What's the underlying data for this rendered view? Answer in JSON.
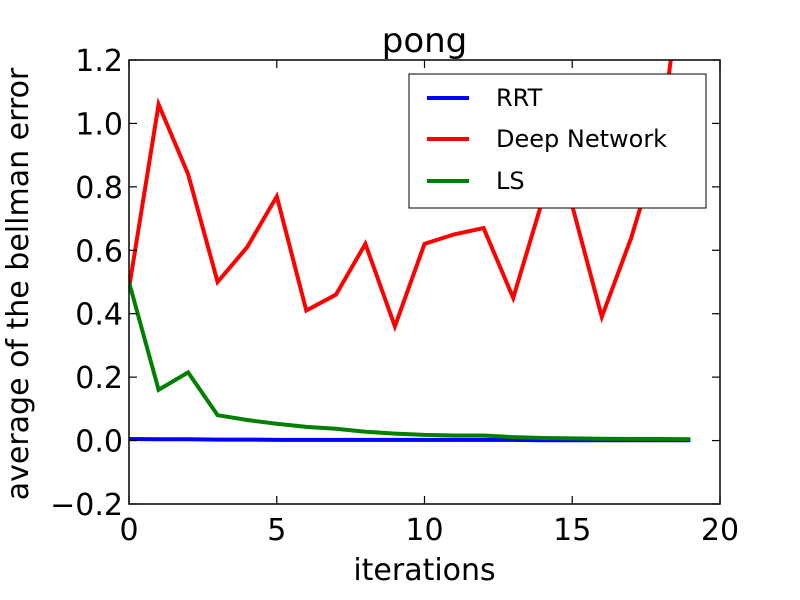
{
  "chart_data": {
    "type": "line",
    "title": "pong",
    "xlabel": "iterations",
    "ylabel": "average of the bellman error",
    "xlim": [
      0,
      20
    ],
    "ylim": [
      -0.2,
      1.2
    ],
    "xticks": [
      0,
      5,
      10,
      15,
      20
    ],
    "yticks": [
      -0.2,
      0.0,
      0.2,
      0.4,
      0.6,
      0.8,
      1.0,
      1.2
    ],
    "xtick_labels": [
      "0",
      "5",
      "10",
      "15",
      "20"
    ],
    "ytick_labels": [
      "−0.2",
      "0.0",
      "0.2",
      "0.4",
      "0.6",
      "0.8",
      "1.0",
      "1.2"
    ],
    "grid": false,
    "legend_position": "top-right",
    "x": [
      0,
      1,
      2,
      3,
      4,
      5,
      6,
      7,
      8,
      9,
      10,
      11,
      12,
      13,
      14,
      15,
      16,
      17,
      18,
      19
    ],
    "series": [
      {
        "name": "RRT",
        "color": "#0000ff",
        "values": [
          0.005,
          0.004,
          0.004,
          0.003,
          0.003,
          0.002,
          0.002,
          0.002,
          0.002,
          0.002,
          0.002,
          0.002,
          0.002,
          0.002,
          0.001,
          0.001,
          0.001,
          0.001,
          0.001,
          0.001
        ]
      },
      {
        "name": "Deep Network",
        "color": "#ff0000",
        "values": [
          0.48,
          1.06,
          0.84,
          0.5,
          0.61,
          0.77,
          0.41,
          0.46,
          0.62,
          0.36,
          0.62,
          0.65,
          0.67,
          0.45,
          0.76,
          0.74,
          0.39,
          0.64,
          0.95,
          1.7
        ]
      },
      {
        "name": "LS",
        "color": "#008000",
        "values": [
          0.5,
          0.16,
          0.215,
          0.08,
          0.065,
          0.053,
          0.043,
          0.037,
          0.028,
          0.022,
          0.018,
          0.016,
          0.016,
          0.011,
          0.008,
          0.007,
          0.006,
          0.005,
          0.005,
          0.004
        ]
      }
    ]
  }
}
